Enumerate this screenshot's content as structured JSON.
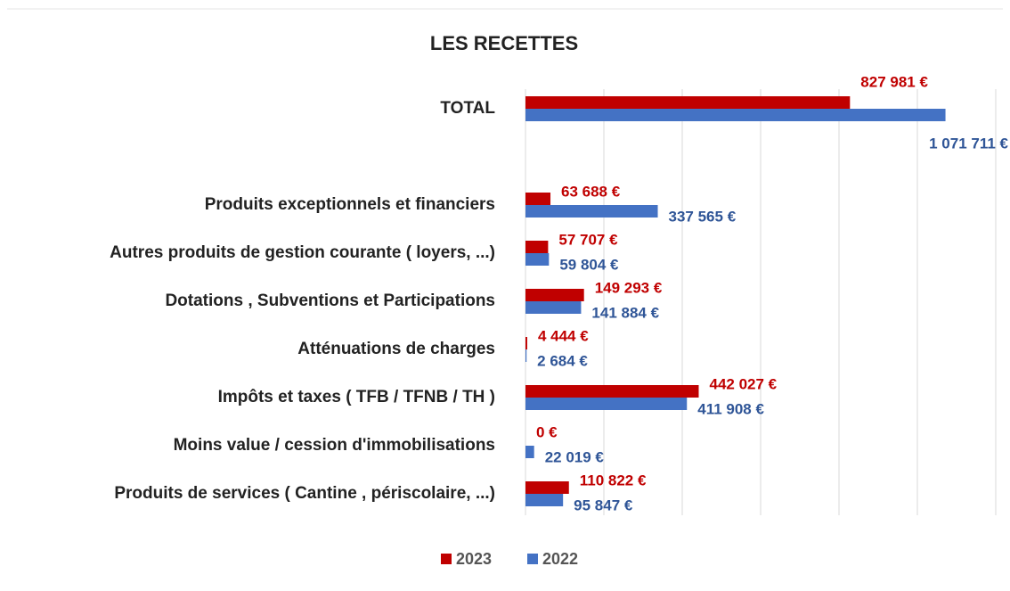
{
  "chart_data": {
    "type": "bar",
    "orientation": "horizontal",
    "title": "LES RECETTES",
    "categories": [
      "TOTAL",
      null,
      "Produits exceptionnels et financiers",
      "Autres produits de gestion courante ( loyers, ...)",
      "Dotations , Subventions et Participations",
      "Atténuations de charges",
      "Impôts et taxes ( TFB / TFNB / TH )",
      "Moins value / cession d'immobilisations",
      "Produits de services ( Cantine , périscolaire, ...)"
    ],
    "series": [
      {
        "name": "2023",
        "color": "#c00000",
        "values": [
          827981,
          null,
          63688,
          57707,
          149293,
          4444,
          442027,
          0,
          110822
        ],
        "value_labels": [
          "827 981 €",
          null,
          "63 688 €",
          "57 707 €",
          "149 293 €",
          "4 444 €",
          "442 027 €",
          "0 €",
          "110 822 €"
        ]
      },
      {
        "name": "2022",
        "color": "#4472c4",
        "values": [
          1071711,
          null,
          337565,
          59804,
          141884,
          2684,
          411908,
          22019,
          95847
        ],
        "value_labels": [
          "1 071 711 €",
          null,
          "337 565 €",
          "59 804 €",
          "141 884 €",
          "2 684 €",
          "411 908 €",
          "22 019 €",
          "95 847 €"
        ]
      }
    ],
    "xlim": [
      0,
      1200000
    ],
    "xticks": [
      0,
      200000,
      400000,
      600000,
      800000,
      1000000,
      1200000
    ],
    "grid": true,
    "legend": "bottom"
  }
}
